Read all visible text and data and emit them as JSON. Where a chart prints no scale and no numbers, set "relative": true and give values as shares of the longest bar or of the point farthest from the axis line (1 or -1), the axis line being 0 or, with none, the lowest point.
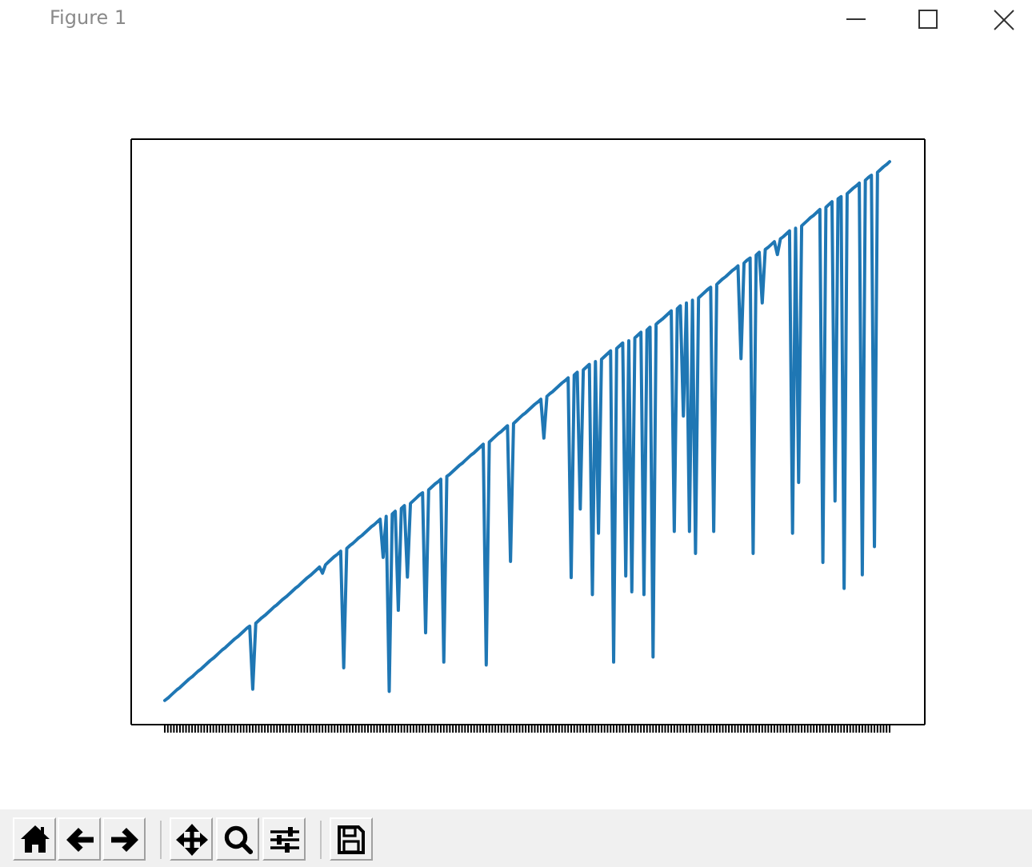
{
  "chart_data": {
    "type": "line",
    "relative": true,
    "categories": [
      null,
      null,
      null,
      null,
      null,
      null,
      null,
      null,
      null,
      null,
      null,
      null,
      null,
      null,
      null,
      null,
      null,
      null,
      null,
      null,
      null,
      null,
      null,
      null,
      null,
      null,
      null,
      null,
      null,
      null,
      null,
      null,
      null,
      null,
      null,
      null,
      null,
      null,
      null,
      null,
      null,
      null,
      null,
      null,
      null,
      null,
      null,
      null,
      null,
      null,
      null,
      null,
      null,
      null,
      null,
      null,
      null,
      null,
      null,
      null,
      null,
      null,
      null,
      null,
      null,
      null,
      null,
      null,
      null,
      null,
      null,
      null,
      null,
      null,
      null,
      null,
      null,
      null,
      null,
      null,
      null,
      null,
      null,
      null,
      null,
      null,
      null,
      null,
      null,
      null,
      null,
      null,
      null,
      null,
      null,
      null,
      null,
      null,
      null,
      null,
      null,
      null,
      null,
      null,
      null,
      null,
      null,
      null,
      null,
      null,
      null,
      null,
      null,
      null,
      null,
      null,
      null,
      null,
      null,
      null,
      null,
      null,
      null,
      null,
      null,
      null,
      null,
      null,
      null,
      null,
      null,
      null,
      null,
      null,
      null,
      null,
      null,
      null,
      null,
      null,
      null,
      null,
      null,
      null,
      null,
      null,
      null,
      null,
      null,
      null,
      null,
      null,
      null,
      null,
      null,
      null,
      null,
      null,
      null,
      null,
      null,
      null,
      null,
      null,
      null,
      null,
      null,
      null,
      null,
      null,
      null,
      null,
      null,
      null,
      null,
      null,
      null,
      null,
      null,
      null,
      null,
      null,
      null,
      null,
      null,
      null,
      null,
      null,
      null,
      null,
      null,
      null,
      null,
      null,
      null,
      null,
      null,
      null,
      null,
      null,
      null,
      null,
      null,
      null,
      null,
      null,
      null,
      null,
      null,
      null,
      null,
      null,
      null,
      null,
      null,
      null,
      null,
      null,
      null,
      null,
      null,
      null,
      null,
      null,
      null,
      null,
      null,
      null,
      null,
      null,
      null,
      null,
      null,
      null,
      null,
      null,
      null,
      null,
      null,
      null
    ],
    "series": [
      {
        "color": "#1f77b4",
        "values": [
          0.043,
          0.047,
          0.052,
          0.057,
          0.062,
          0.066,
          0.071,
          0.076,
          0.081,
          0.085,
          0.09,
          0.095,
          0.099,
          0.104,
          0.109,
          0.114,
          0.118,
          0.123,
          0.128,
          0.133,
          0.137,
          0.142,
          0.147,
          0.152,
          0.156,
          0.161,
          0.166,
          0.171,
          0.175,
          0.063,
          0.18,
          0.185,
          0.19,
          0.194,
          0.199,
          0.204,
          0.209,
          0.213,
          0.218,
          0.223,
          0.227,
          0.232,
          0.237,
          0.242,
          0.246,
          0.251,
          0.256,
          0.261,
          0.265,
          0.27,
          0.275,
          0.28,
          0.269,
          0.284,
          0.289,
          0.294,
          0.299,
          0.303,
          0.308,
          0.101,
          0.313,
          0.318,
          0.322,
          0.327,
          0.332,
          0.336,
          0.341,
          0.346,
          0.351,
          0.355,
          0.36,
          0.365,
          0.297,
          0.37,
          0.059,
          0.374,
          0.379,
          0.203,
          0.384,
          0.389,
          0.262,
          0.393,
          0.398,
          0.403,
          0.408,
          0.412,
          0.163,
          0.417,
          0.422,
          0.427,
          0.431,
          0.436,
          0.111,
          0.441,
          0.445,
          0.45,
          0.455,
          0.46,
          0.464,
          0.469,
          0.474,
          0.479,
          0.483,
          0.488,
          0.493,
          0.498,
          0.106,
          0.502,
          0.507,
          0.512,
          0.517,
          0.521,
          0.526,
          0.531,
          0.29,
          0.535,
          0.54,
          0.545,
          0.55,
          0.554,
          0.559,
          0.564,
          0.569,
          0.573,
          0.578,
          0.509,
          0.583,
          0.588,
          0.592,
          0.597,
          0.602,
          0.607,
          0.611,
          0.616,
          0.261,
          0.621,
          0.626,
          0.383,
          0.63,
          0.635,
          0.64,
          0.231,
          0.645,
          0.34,
          0.649,
          0.654,
          0.659,
          0.664,
          0.111,
          0.668,
          0.673,
          0.678,
          0.264,
          0.682,
          0.236,
          0.687,
          0.692,
          0.697,
          0.231,
          0.701,
          0.706,
          0.12,
          0.711,
          0.716,
          0.72,
          0.725,
          0.73,
          0.735,
          0.343,
          0.739,
          0.744,
          0.548,
          0.749,
          0.343,
          0.754,
          0.304,
          0.758,
          0.763,
          0.768,
          0.773,
          0.777,
          0.343,
          0.782,
          0.787,
          0.792,
          0.796,
          0.801,
          0.806,
          0.81,
          0.815,
          0.65,
          0.82,
          0.825,
          0.829,
          0.304,
          0.834,
          0.839,
          0.749,
          0.844,
          0.848,
          0.853,
          0.858,
          0.835,
          0.863,
          0.867,
          0.872,
          0.877,
          0.34,
          0.882,
          0.43,
          0.886,
          0.891,
          0.896,
          0.901,
          0.905,
          0.91,
          0.915,
          0.288,
          0.919,
          0.924,
          0.929,
          0.397,
          0.934,
          0.938,
          0.242,
          0.943,
          0.948,
          0.953,
          0.957,
          0.962,
          0.266,
          0.967,
          0.972,
          0.976,
          0.316,
          0.981,
          0.986,
          0.991,
          0.995,
          1
        ]
      }
    ],
    "annotations": [
      "Figure 1"
    ]
  }
}
